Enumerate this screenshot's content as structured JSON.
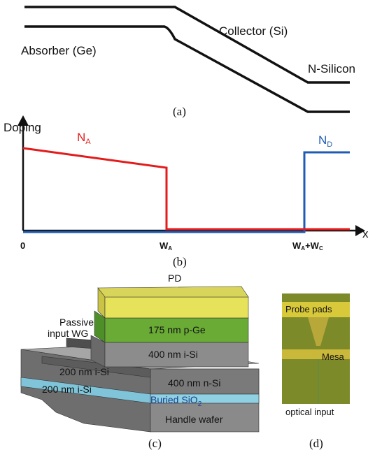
{
  "panel_a": {
    "labels": [
      "Collector (Si)",
      "Absorber (Ge)",
      "N-Silicon"
    ],
    "caption": "(a)"
  },
  "panel_b": {
    "y_axis_label": "Doping",
    "x_axis_label": "x",
    "na": [
      "N",
      "A"
    ],
    "nd": [
      "N",
      "D"
    ],
    "ticks": [
      [
        "0"
      ],
      [
        "W",
        "A"
      ],
      [
        "W",
        "A",
        "+W",
        "C"
      ]
    ],
    "caption": "(b)"
  },
  "panel_c": {
    "top_label": "PD",
    "wg_label": [
      "Passive",
      "input WG"
    ],
    "layers": [
      "175 nm p-Ge",
      "400 nm i-Si",
      "200 nm i-Si",
      "200 nm i-Si",
      "400 nm n-Si"
    ],
    "oxide": [
      "Buried SiO",
      "2"
    ],
    "substrate": "Handle wafer",
    "caption": "(c)"
  },
  "panel_d": {
    "pads": "Probe pads",
    "mesa": "Mesa",
    "input": "optical input",
    "caption": "(d)"
  }
}
